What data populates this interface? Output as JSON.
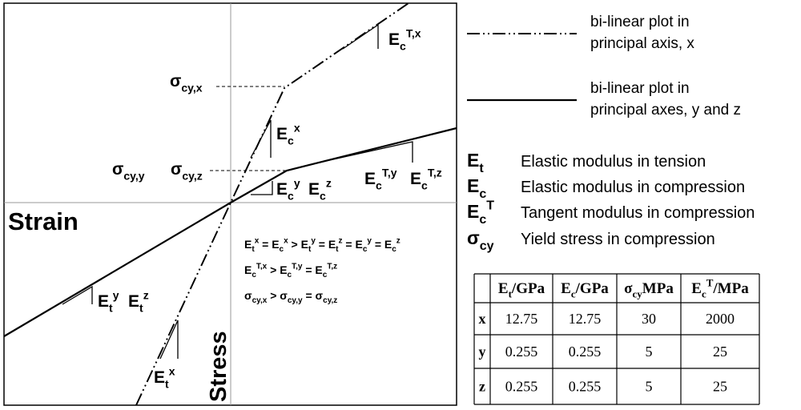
{
  "plot": {
    "axis_labels": {
      "strain": "Strain",
      "stress": "Stress"
    },
    "annotations": [
      [
        {
          "t": "σ",
          "sub": "cy,x"
        }
      ],
      [
        {
          "t": "E",
          "sub": "c",
          "sup": "T,x"
        }
      ],
      [
        {
          "t": "E",
          "sub": "c",
          "sup": "x"
        }
      ],
      [
        {
          "t": "σ",
          "sub": "cy,y"
        }
      ],
      [
        {
          "t": "σ",
          "sub": "cy,z"
        }
      ],
      [
        {
          "t": "E",
          "sub": "c",
          "sup": "T,y"
        }
      ],
      [
        {
          "t": "E",
          "sub": "c",
          "sup": "T,z"
        }
      ],
      [
        {
          "t": "E",
          "sub": "c",
          "sup": "y"
        }
      ],
      [
        {
          "t": "E",
          "sub": "c",
          "sup": "z"
        }
      ],
      [
        {
          "t": "E",
          "sub": "t",
          "sup": "y"
        }
      ],
      [
        {
          "t": "E",
          "sub": "t",
          "sup": "z"
        }
      ],
      [
        {
          "t": "E",
          "sub": "t",
          "sup": "x"
        }
      ]
    ],
    "equations": [
      [
        {
          "t": "E",
          "sub": "t",
          "sup": "x"
        },
        {
          "t": " = E",
          "sub": "c",
          "sup": "x"
        },
        {
          "t": " > E",
          "sub": "t",
          "sup": "y"
        },
        {
          "t": " = E",
          "sub": "t",
          "sup": "z"
        },
        {
          "t": " = E",
          "sub": "c",
          "sup": "y"
        },
        {
          "t": " = E",
          "sub": "c",
          "sup": "z"
        }
      ],
      [
        {
          "t": "E",
          "sub": "c",
          "sup": "T,x"
        },
        {
          "t": " > E",
          "sub": "c",
          "sup": "T,y"
        },
        {
          "t": " = E",
          "sub": "c",
          "sup": "T,z"
        }
      ],
      [
        {
          "t": "σ",
          "sub": "cy,x"
        },
        {
          "t": " > σ",
          "sub": "cy,y"
        },
        {
          "t": " = σ",
          "sub": "cy,z"
        }
      ]
    ]
  },
  "legend": [
    {
      "lines": [
        "bi-linear plot in",
        "principal axis, x"
      ]
    },
    {
      "lines": [
        "bi-linear plot in",
        "principal axes, y and z"
      ]
    }
  ],
  "symbols": [
    {
      "symbol": [
        {
          "t": "E",
          "sub": "t"
        }
      ],
      "description": "Elastic modulus in tension"
    },
    {
      "symbol": [
        {
          "t": "E",
          "sub": "c"
        }
      ],
      "description": "Elastic modulus in compression"
    },
    {
      "symbol": [
        {
          "t": "E",
          "sub": "c",
          "sup": "T"
        }
      ],
      "description": "Tangent modulus in compression"
    },
    {
      "symbol": [
        {
          "t": "σ",
          "sub": "cy"
        }
      ],
      "description": "Yield stress in compression"
    }
  ],
  "table": {
    "header": [
      [
        {
          "t": "E",
          "sub": "t"
        },
        {
          "t": "/GPa"
        }
      ],
      [
        {
          "t": "E",
          "sub": "c"
        },
        {
          "t": "/GPa"
        }
      ],
      [
        {
          "t": "σ",
          "sub": "cy"
        },
        {
          "t": "MPa"
        }
      ],
      [
        {
          "t": "E",
          "sub": "c",
          "sup": "T"
        },
        {
          "t": "/MPa"
        }
      ]
    ],
    "rows": [
      [
        "x",
        12.75,
        12.75,
        30,
        2000
      ],
      [
        "y",
        0.255,
        0.255,
        5,
        25
      ],
      [
        "z",
        0.255,
        0.255,
        5,
        25
      ]
    ]
  }
}
